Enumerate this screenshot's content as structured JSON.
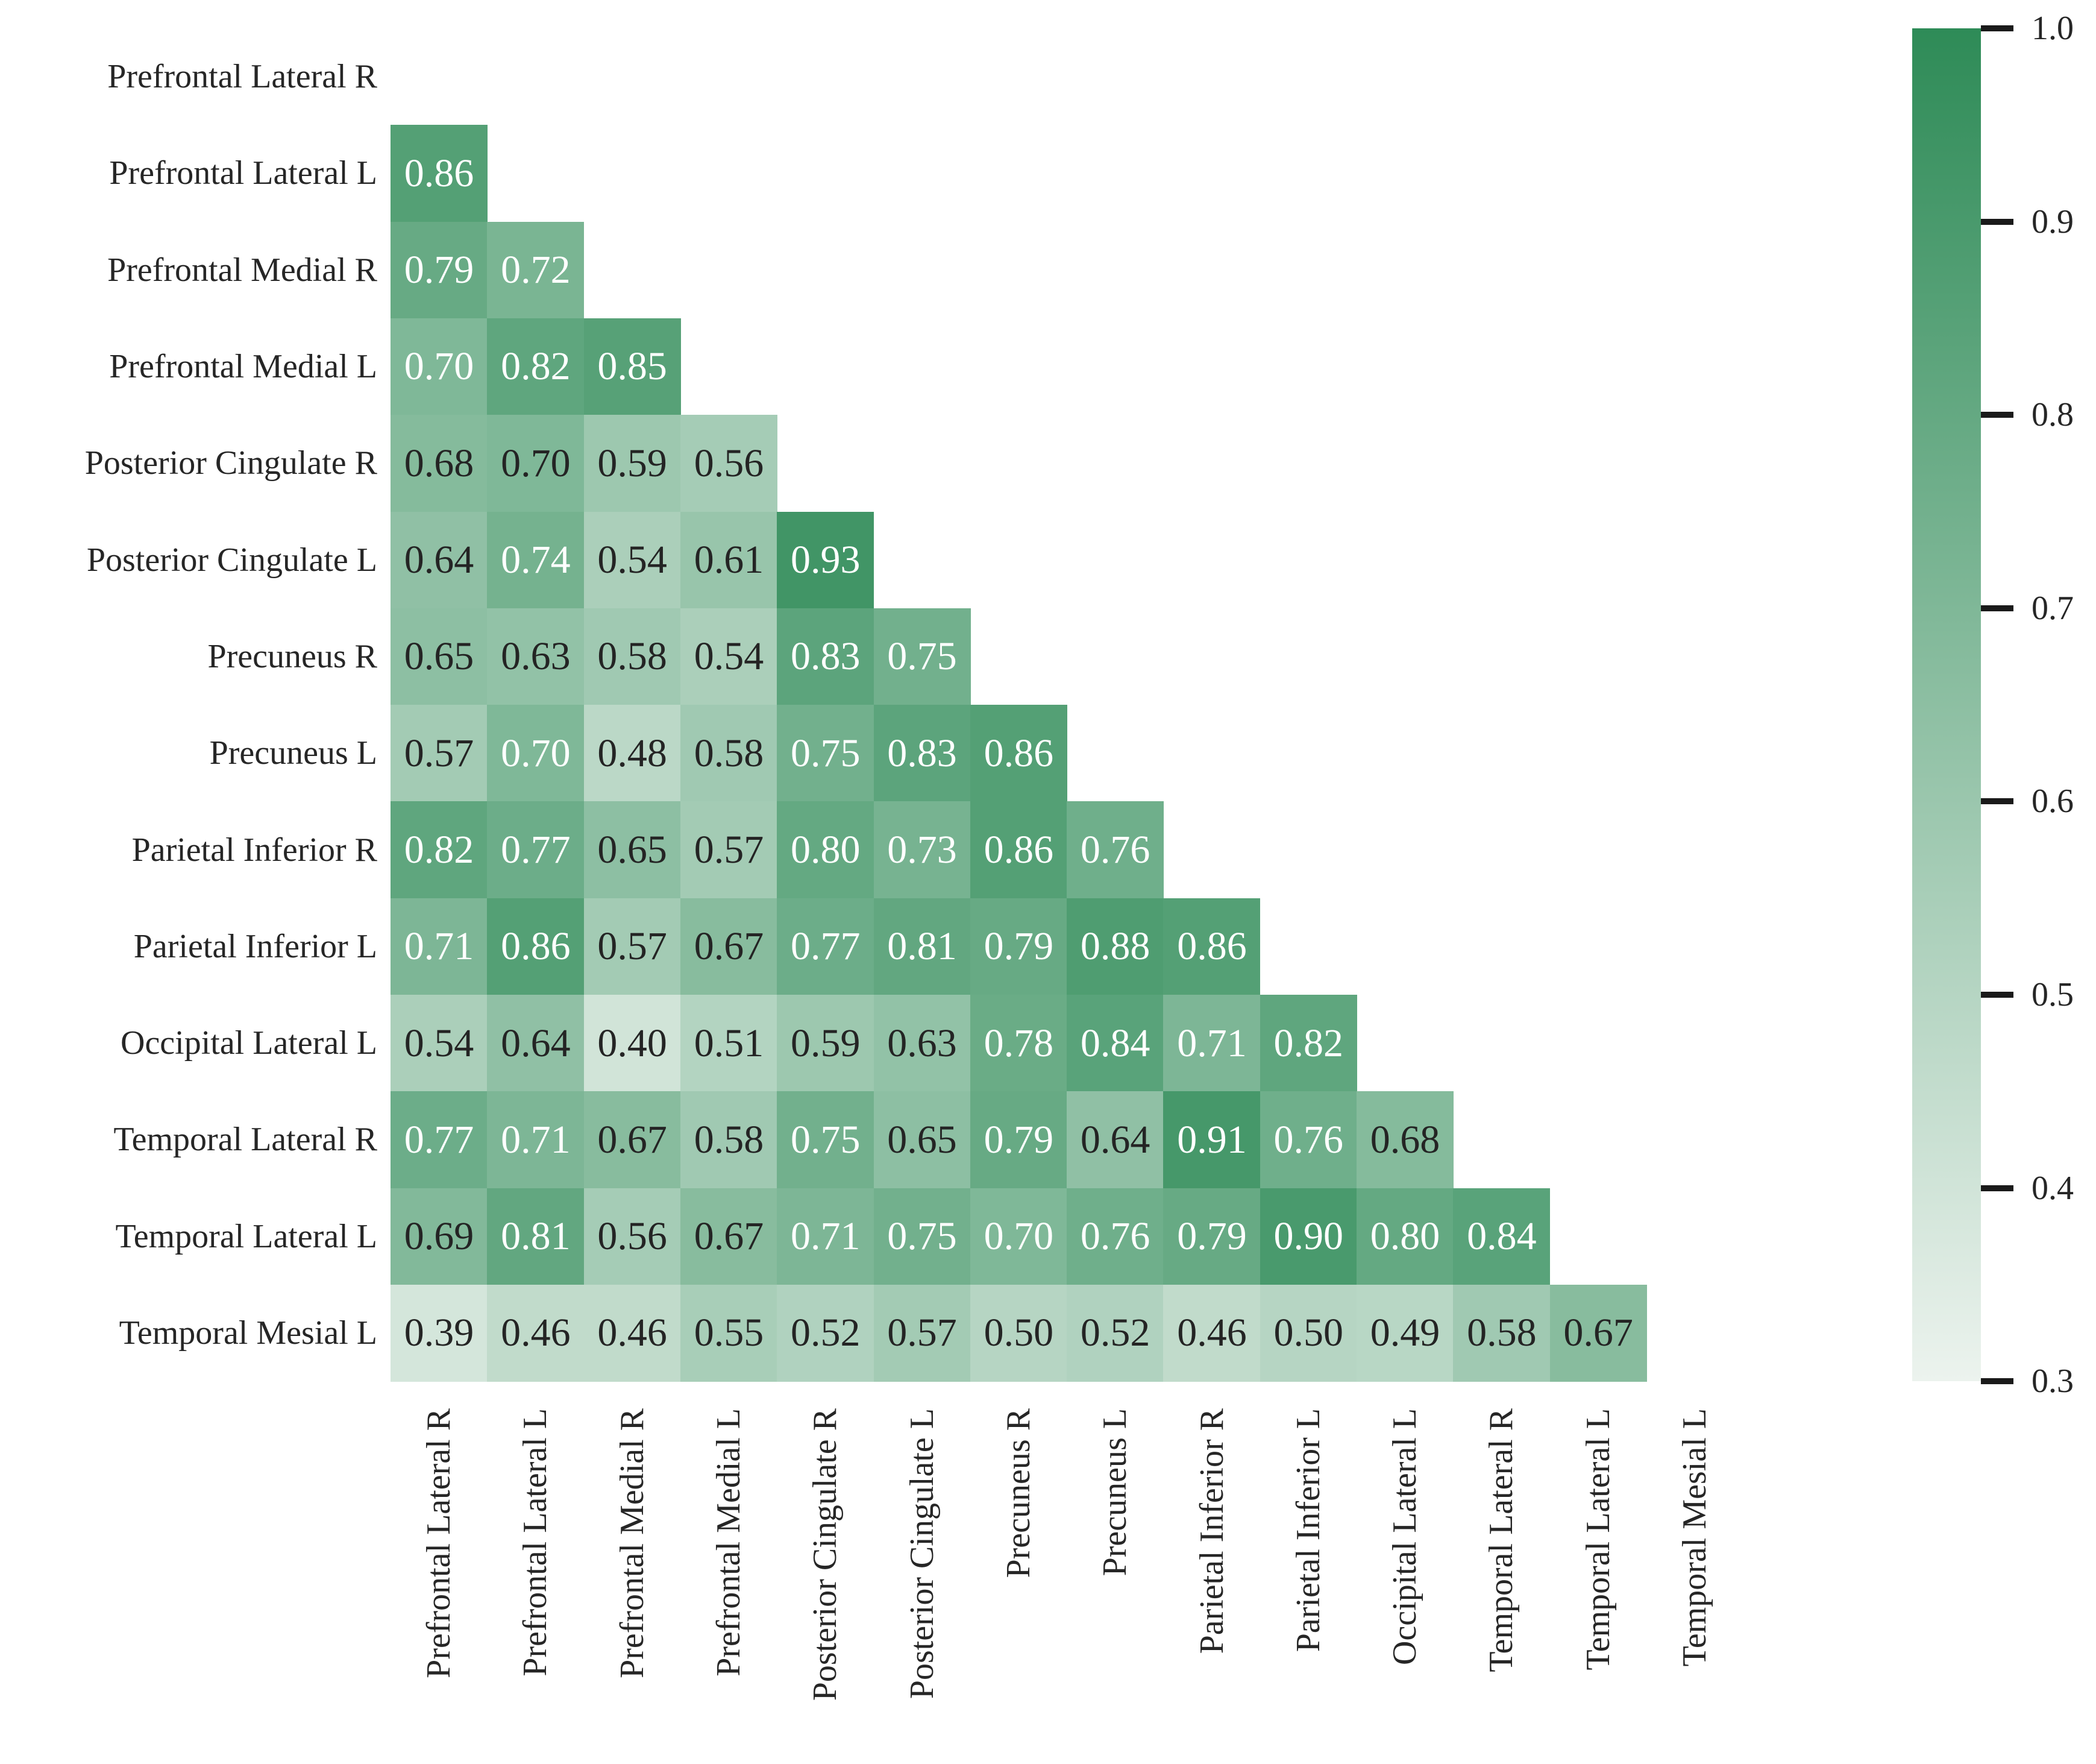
{
  "figure": {
    "background": "#ffffff",
    "title": ""
  },
  "chart_data": {
    "type": "heatmap",
    "subtype": "lower-triangular-correlation-matrix",
    "title": "",
    "xlabel": "",
    "ylabel": "",
    "grid": false,
    "x_tick_rotation": 90,
    "labels": [
      "Prefrontal Lateral R",
      "Prefrontal Lateral L",
      "Prefrontal Medial R",
      "Prefrontal Medial L",
      "Posterior Cingulate R",
      "Posterior Cingulate L",
      "Precuneus R",
      "Precuneus L",
      "Parietal Inferior R",
      "Parietal Inferior L",
      "Occipital Lateral L",
      "Temporal Lateral R",
      "Temporal Lateral L",
      "Temporal Mesial L"
    ],
    "rows": [
      {
        "label": "Prefrontal Lateral R",
        "values": [],
        "text_colors": []
      },
      {
        "label": "Prefrontal Lateral L",
        "values": [
          0.86
        ],
        "text_colors": [
          "w"
        ]
      },
      {
        "label": "Prefrontal Medial R",
        "values": [
          0.79,
          0.72
        ],
        "text_colors": [
          "w",
          "w"
        ]
      },
      {
        "label": "Prefrontal Medial L",
        "values": [
          0.7,
          0.82,
          0.85
        ],
        "text_colors": [
          "w",
          "w",
          "w"
        ]
      },
      {
        "label": "Posterior Cingulate R",
        "values": [
          0.68,
          0.7,
          0.59,
          0.56
        ],
        "text_colors": [
          "b",
          "b",
          "b",
          "b"
        ]
      },
      {
        "label": "Posterior Cingulate L",
        "values": [
          0.64,
          0.74,
          0.54,
          0.61,
          0.93
        ],
        "text_colors": [
          "b",
          "w",
          "b",
          "b",
          "w"
        ]
      },
      {
        "label": "Precuneus R",
        "values": [
          0.65,
          0.63,
          0.58,
          0.54,
          0.83,
          0.75
        ],
        "text_colors": [
          "b",
          "b",
          "b",
          "b",
          "w",
          "w"
        ]
      },
      {
        "label": "Precuneus L",
        "values": [
          0.57,
          0.7,
          0.48,
          0.58,
          0.75,
          0.83,
          0.86
        ],
        "text_colors": [
          "b",
          "w",
          "b",
          "b",
          "w",
          "w",
          "w"
        ]
      },
      {
        "label": "Parietal Inferior R",
        "values": [
          0.82,
          0.77,
          0.65,
          0.57,
          0.8,
          0.73,
          0.86,
          0.76
        ],
        "text_colors": [
          "w",
          "w",
          "b",
          "b",
          "w",
          "w",
          "w",
          "w"
        ]
      },
      {
        "label": "Parietal Inferior L",
        "values": [
          0.71,
          0.86,
          0.57,
          0.67,
          0.77,
          0.81,
          0.79,
          0.88,
          0.86
        ],
        "text_colors": [
          "w",
          "w",
          "b",
          "b",
          "w",
          "w",
          "w",
          "w",
          "w"
        ]
      },
      {
        "label": "Occipital Lateral L",
        "values": [
          0.54,
          0.64,
          0.4,
          0.51,
          0.59,
          0.63,
          0.78,
          0.84,
          0.71,
          0.82
        ],
        "text_colors": [
          "b",
          "b",
          "b",
          "b",
          "b",
          "b",
          "w",
          "w",
          "w",
          "w"
        ]
      },
      {
        "label": "Temporal Lateral R",
        "values": [
          0.77,
          0.71,
          0.67,
          0.58,
          0.75,
          0.65,
          0.79,
          0.64,
          0.91,
          0.76,
          0.68
        ],
        "text_colors": [
          "w",
          "w",
          "b",
          "b",
          "w",
          "b",
          "w",
          "b",
          "w",
          "w",
          "b"
        ]
      },
      {
        "label": "Temporal Lateral L",
        "values": [
          0.69,
          0.81,
          0.56,
          0.67,
          0.71,
          0.75,
          0.7,
          0.76,
          0.79,
          0.9,
          0.8,
          0.84
        ],
        "text_colors": [
          "b",
          "w",
          "b",
          "b",
          "w",
          "w",
          "w",
          "w",
          "w",
          "w",
          "w",
          "w"
        ]
      },
      {
        "label": "Temporal Mesial L",
        "values": [
          0.39,
          0.46,
          0.46,
          0.55,
          0.52,
          0.57,
          0.5,
          0.52,
          0.46,
          0.5,
          0.49,
          0.58,
          0.67
        ],
        "text_colors": [
          "b",
          "b",
          "b",
          "b",
          "b",
          "b",
          "b",
          "b",
          "b",
          "b",
          "b",
          "b",
          "b"
        ]
      }
    ],
    "value_decimals": 2,
    "annotation_text_color_dark": "#242424",
    "annotation_text_color_light": "#ffffff",
    "colorbar": {
      "position": "right",
      "min": 0.3,
      "max": 1.0,
      "tick_labels": [
        "1.0",
        "0.9",
        "0.8",
        "0.7",
        "0.6",
        "0.5",
        "0.4",
        "0.3"
      ],
      "color_low": "#ecf3ee",
      "color_high": "#2e8b57"
    }
  }
}
